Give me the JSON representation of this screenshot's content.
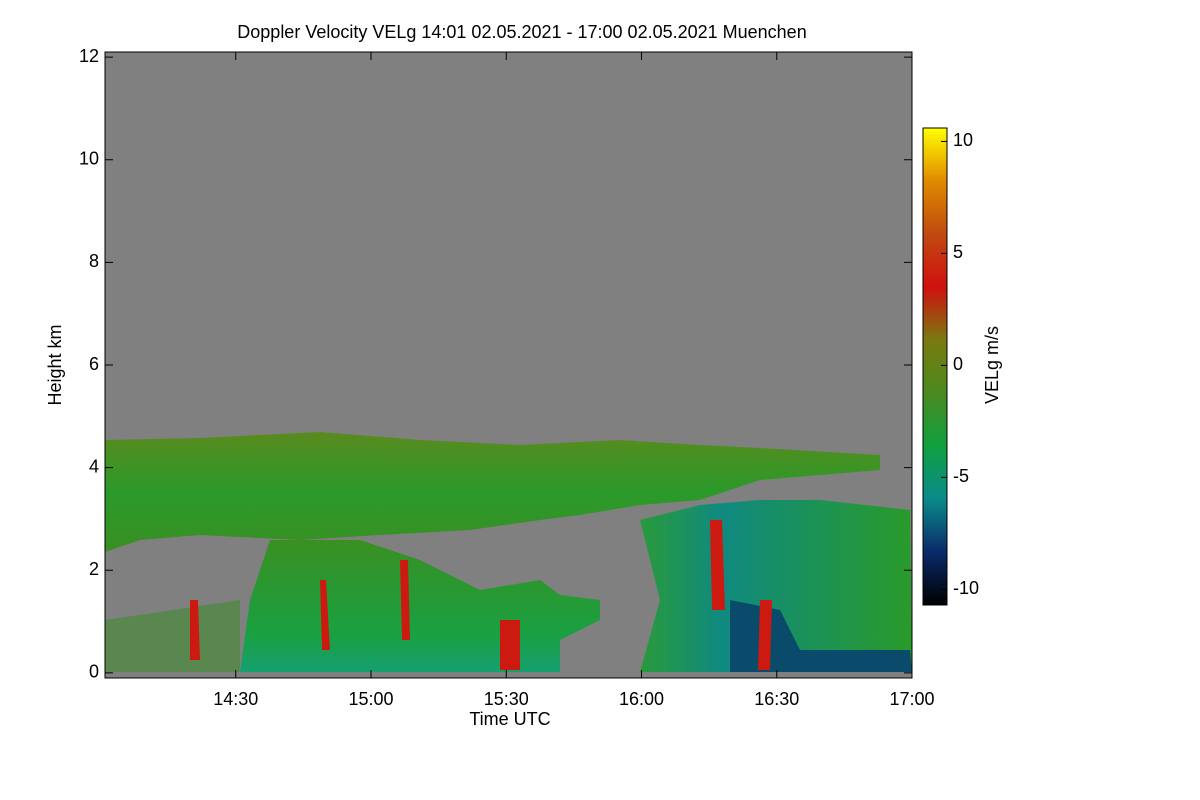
{
  "chart_data": {
    "type": "heatmap",
    "title": "Doppler Velocity VELg   14:01 02.05.2021 - 17:00 02.05.2021 Muenchen",
    "x_label": "Time UTC",
    "y_label": "Height km",
    "colorbar_label": "VELg m/s",
    "xlim": [
      841,
      1020
    ],
    "xticks": [
      {
        "value": 870,
        "label": "14:30"
      },
      {
        "value": 900,
        "label": "15:00"
      },
      {
        "value": 930,
        "label": "15:30"
      },
      {
        "value": 960,
        "label": "16:00"
      },
      {
        "value": 990,
        "label": "16:30"
      },
      {
        "value": 1020,
        "label": "17:00"
      }
    ],
    "ylim": [
      -0.1,
      12.1
    ],
    "yticks": [
      0,
      2,
      4,
      6,
      8,
      10,
      12
    ],
    "clim": [
      -10.7,
      10.6
    ],
    "cticks": [
      -10,
      -5,
      0,
      5,
      10
    ],
    "colormap": [
      "#000000",
      "#0a2a6a",
      "#0a8a8a",
      "#10a040",
      "#4a8a20",
      "#7a7a10",
      "#d01010",
      "#c04a10",
      "#e08a00",
      "#ffff00"
    ],
    "nodata_color": "#808080"
  }
}
